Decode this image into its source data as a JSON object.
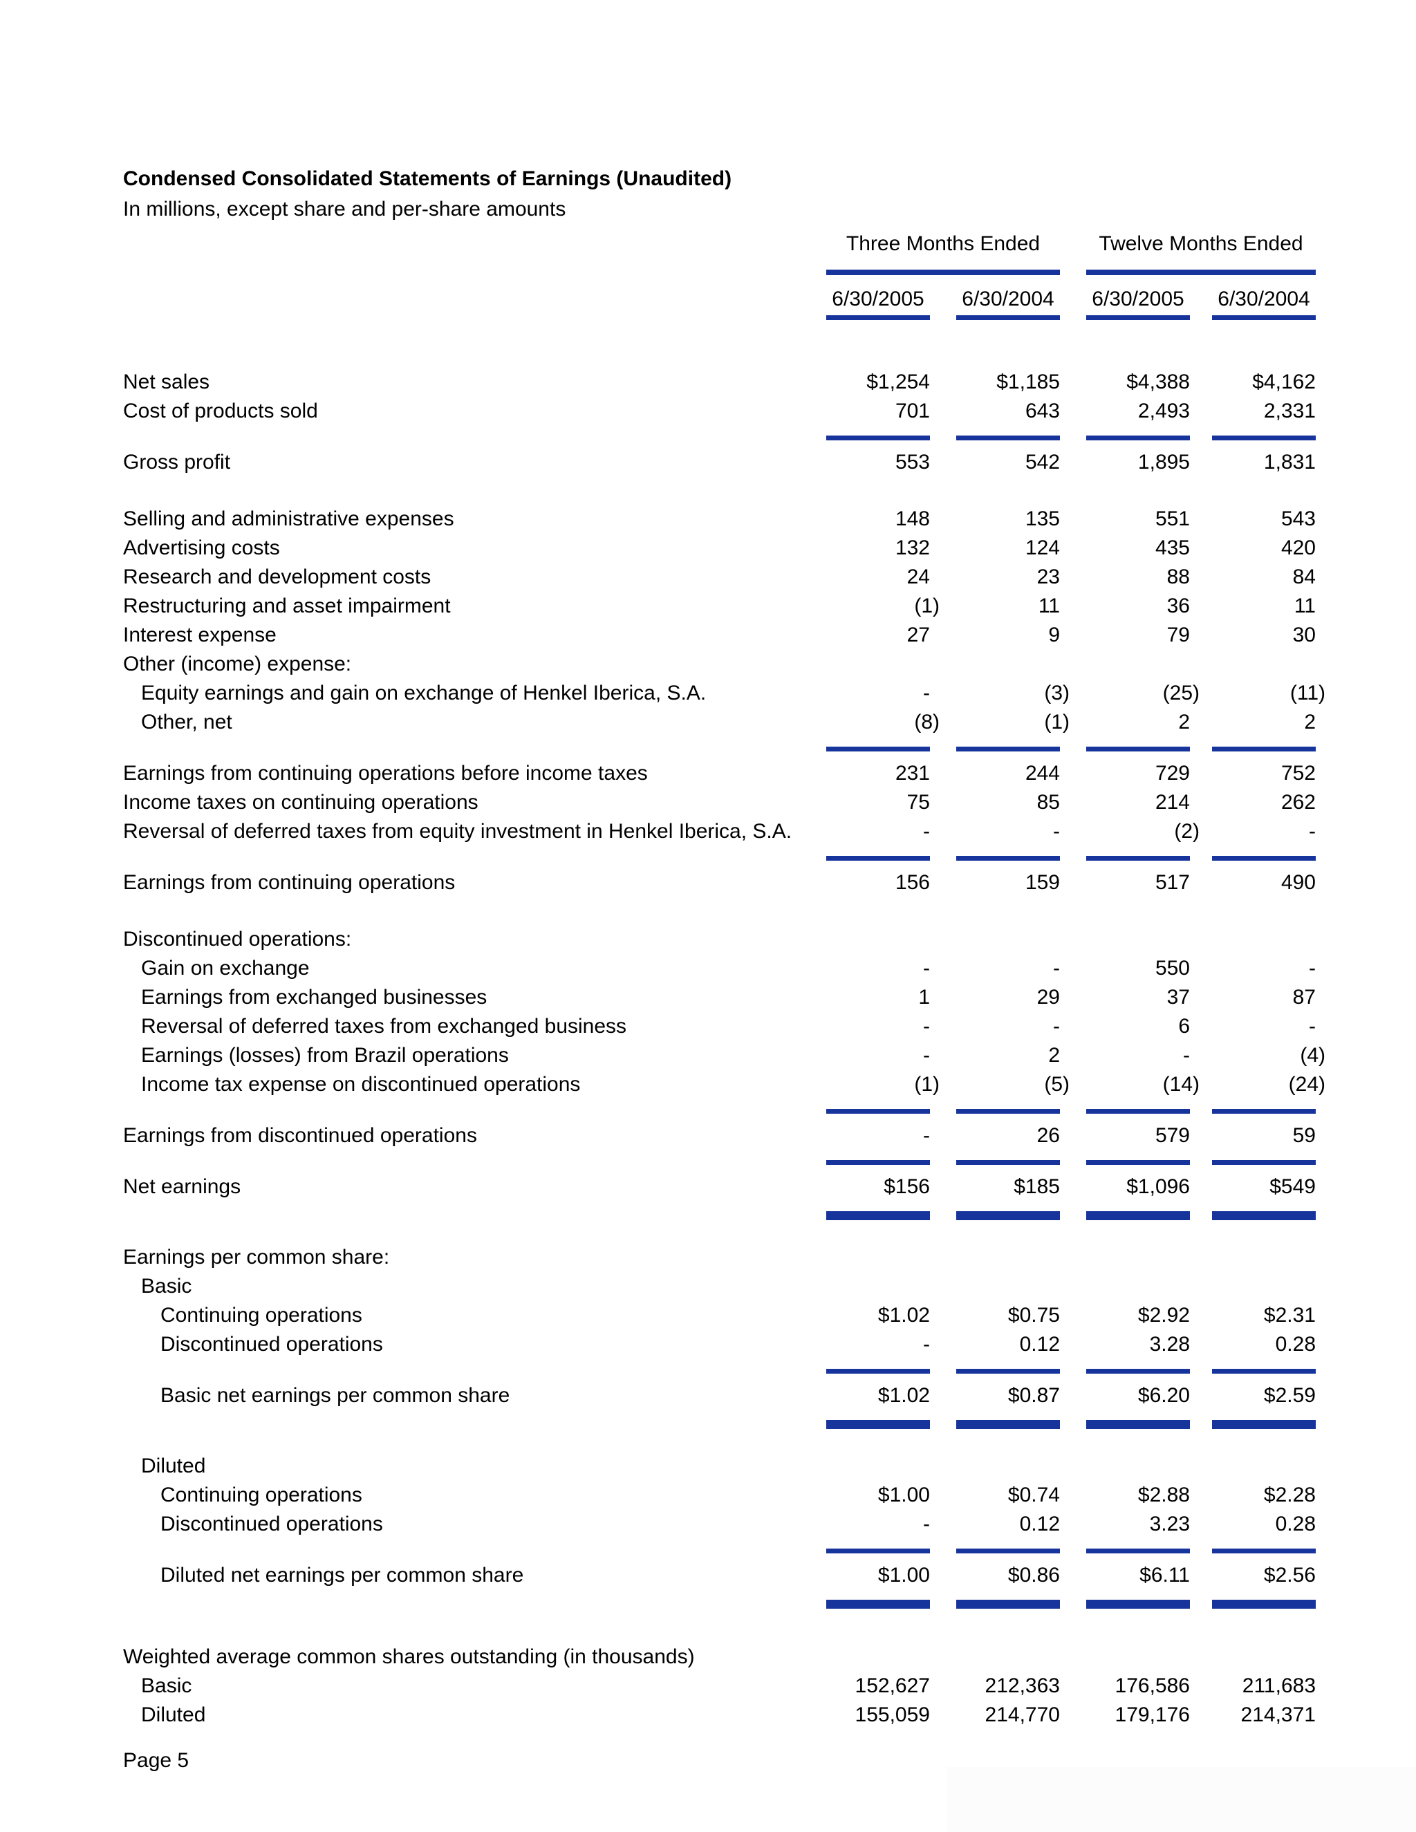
{
  "page": {
    "title": "Condensed Consolidated Statements of Earnings (Unaudited)",
    "subtitle": "In millions, except share and per-share amounts",
    "footer": "Page 5",
    "accent_color": "#17349c"
  },
  "columns": {
    "groups": [
      {
        "label": "Three Months Ended"
      },
      {
        "label": "Twelve Months Ended"
      }
    ],
    "dates": [
      "6/30/2005",
      "6/30/2004",
      "6/30/2005",
      "6/30/2004"
    ]
  },
  "rows": [
    {
      "type": "row",
      "label": "Net sales",
      "indent": 0,
      "values": [
        "$1,254",
        "$1,185",
        "$4,388",
        "$4,162"
      ]
    },
    {
      "type": "row",
      "label": "Cost of products sold",
      "indent": 0,
      "values": [
        "701",
        "643",
        "2,493",
        "2,331"
      ]
    },
    {
      "type": "rule"
    },
    {
      "type": "row",
      "label": "Gross profit",
      "indent": 0,
      "values": [
        "553",
        "542",
        "1,895",
        "1,831"
      ]
    },
    {
      "type": "gap",
      "size": "md"
    },
    {
      "type": "row",
      "label": "Selling and administrative expenses",
      "indent": 0,
      "values": [
        "148",
        "135",
        "551",
        "543"
      ]
    },
    {
      "type": "row",
      "label": "Advertising costs",
      "indent": 0,
      "values": [
        "132",
        "124",
        "435",
        "420"
      ]
    },
    {
      "type": "row",
      "label": "Research and development costs",
      "indent": 0,
      "values": [
        "24",
        "23",
        "88",
        "84"
      ]
    },
    {
      "type": "row",
      "label": "Restructuring and asset impairment",
      "indent": 0,
      "values": [
        "(1)",
        "11",
        "36",
        "11"
      ]
    },
    {
      "type": "row",
      "label": "Interest expense",
      "indent": 0,
      "values": [
        "27",
        "9",
        "79",
        "30"
      ]
    },
    {
      "type": "row",
      "label": "Other (income) expense:",
      "indent": 0,
      "values": []
    },
    {
      "type": "row",
      "label": "Equity earnings and gain on exchange of Henkel Iberica, S.A.",
      "indent": 1,
      "values": [
        "-",
        "(3)",
        "(25)",
        "(11)"
      ]
    },
    {
      "type": "row",
      "label": "Other, net",
      "indent": 1,
      "values": [
        "(8)",
        "(1)",
        "2",
        "2"
      ]
    },
    {
      "type": "rule"
    },
    {
      "type": "row",
      "label": "Earnings from continuing operations before income taxes",
      "indent": 0,
      "values": [
        "231",
        "244",
        "729",
        "752"
      ]
    },
    {
      "type": "row",
      "label": "Income taxes on continuing operations",
      "indent": 0,
      "values": [
        "75",
        "85",
        "214",
        "262"
      ]
    },
    {
      "type": "row",
      "label": "Reversal of deferred taxes from equity investment in Henkel Iberica, S.A.",
      "indent": 0,
      "values": [
        "-",
        "-",
        "(2)",
        "-"
      ]
    },
    {
      "type": "rule"
    },
    {
      "type": "row",
      "label": "Earnings from continuing operations",
      "indent": 0,
      "values": [
        "156",
        "159",
        "517",
        "490"
      ]
    },
    {
      "type": "gap",
      "size": "md"
    },
    {
      "type": "row",
      "label": "Discontinued operations:",
      "indent": 0,
      "values": []
    },
    {
      "type": "row",
      "label": "Gain on exchange",
      "indent": 1,
      "values": [
        "-",
        "-",
        "550",
        "-"
      ]
    },
    {
      "type": "row",
      "label": "Earnings from exchanged businesses",
      "indent": 1,
      "values": [
        "1",
        "29",
        "37",
        "87"
      ]
    },
    {
      "type": "row",
      "label": "Reversal of deferred taxes from exchanged business",
      "indent": 1,
      "values": [
        "-",
        "-",
        "6",
        "-"
      ]
    },
    {
      "type": "row",
      "label": "Earnings (losses) from Brazil operations",
      "indent": 1,
      "values": [
        "-",
        "2",
        "-",
        "(4)"
      ]
    },
    {
      "type": "row",
      "label": "Income tax expense on discontinued operations",
      "indent": 1,
      "values": [
        "(1)",
        "(5)",
        "(14)",
        "(24)"
      ]
    },
    {
      "type": "rule"
    },
    {
      "type": "row",
      "label": "Earnings from discontinued operations",
      "indent": 0,
      "values": [
        "-",
        "26",
        "579",
        "59"
      ]
    },
    {
      "type": "rule"
    },
    {
      "type": "row",
      "label": "Net earnings",
      "indent": 0,
      "values": [
        "$156",
        "$185",
        "$1,096",
        "$549"
      ]
    },
    {
      "type": "rule",
      "weight": "thick"
    },
    {
      "type": "gap",
      "size": "sm"
    },
    {
      "type": "row",
      "label": "Earnings per common share:",
      "indent": 0,
      "values": []
    },
    {
      "type": "row",
      "label": "Basic",
      "indent": 1,
      "values": []
    },
    {
      "type": "row",
      "label": "Continuing operations",
      "indent": 2,
      "values": [
        "$1.02",
        "$0.75",
        "$2.92",
        "$2.31"
      ]
    },
    {
      "type": "row",
      "label": "Discontinued operations",
      "indent": 2,
      "values": [
        "-",
        "0.12",
        "3.28",
        "0.28"
      ]
    },
    {
      "type": "rule"
    },
    {
      "type": "row",
      "label": "Basic net earnings per common share",
      "indent": 2,
      "values": [
        "$1.02",
        "$0.87",
        "$6.20",
        "$2.59"
      ]
    },
    {
      "type": "rule",
      "weight": "thick"
    },
    {
      "type": "gap",
      "size": "sm"
    },
    {
      "type": "row",
      "label": "Diluted",
      "indent": 1,
      "values": []
    },
    {
      "type": "row",
      "label": "Continuing operations",
      "indent": 2,
      "values": [
        "$1.00",
        "$0.74",
        "$2.88",
        "$2.28"
      ]
    },
    {
      "type": "row",
      "label": "Discontinued operations",
      "indent": 2,
      "values": [
        "-",
        "0.12",
        "3.23",
        "0.28"
      ]
    },
    {
      "type": "rule"
    },
    {
      "type": "row",
      "label": "Diluted net earnings per common share",
      "indent": 2,
      "values": [
        "$1.00",
        "$0.86",
        "$6.11",
        "$2.56"
      ]
    },
    {
      "type": "rule",
      "weight": "thick"
    },
    {
      "type": "gap",
      "size": "md"
    },
    {
      "type": "row",
      "label": "Weighted average common shares outstanding (in thousands)",
      "indent": 0,
      "values": []
    },
    {
      "type": "row",
      "label": "Basic",
      "indent": 1,
      "values": [
        "152,627",
        "212,363",
        "176,586",
        "211,683"
      ]
    },
    {
      "type": "row",
      "label": "Diluted",
      "indent": 1,
      "values": [
        "155,059",
        "214,770",
        "179,176",
        "214,371"
      ]
    }
  ]
}
